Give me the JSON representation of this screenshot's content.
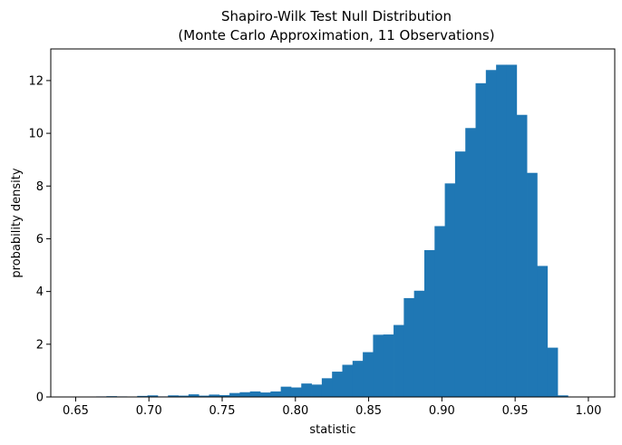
{
  "chart_data": {
    "type": "bar",
    "title": "Shapiro-Wilk Test Null Distribution",
    "subtitle": "(Monte Carlo Approximation, 11 Observations)",
    "xlabel": "statistic",
    "ylabel": "probability density",
    "xlim": [
      0.633,
      1.018
    ],
    "ylim": [
      0,
      13.2
    ],
    "xticks": [
      0.65,
      0.7,
      0.75,
      0.8,
      0.85,
      0.9,
      0.95,
      1.0
    ],
    "xtick_labels": [
      "0.65",
      "0.70",
      "0.75",
      "0.80",
      "0.85",
      "0.90",
      "0.95",
      "1.00"
    ],
    "yticks": [
      0,
      2,
      4,
      6,
      8,
      10,
      12
    ],
    "ytick_labels": [
      "0",
      "2",
      "4",
      "6",
      "8",
      "10",
      "12"
    ],
    "grid": false,
    "color": "#1f77b4",
    "bins": {
      "edges_start": 0.65,
      "bin_width": 0.007,
      "values": [
        0.01,
        0.01,
        0.02,
        0.03,
        0.02,
        0.0,
        0.04,
        0.06,
        0.02,
        0.06,
        0.05,
        0.1,
        0.05,
        0.09,
        0.07,
        0.15,
        0.18,
        0.21,
        0.17,
        0.21,
        0.39,
        0.36,
        0.51,
        0.47,
        0.71,
        0.96,
        1.22,
        1.37,
        1.7,
        2.36,
        2.37,
        2.73,
        3.75,
        4.03,
        5.57,
        6.48,
        8.1,
        9.31,
        10.2,
        11.9,
        12.4,
        12.6,
        12.6,
        10.7,
        8.5,
        4.97,
        1.87,
        0.06
      ]
    }
  }
}
